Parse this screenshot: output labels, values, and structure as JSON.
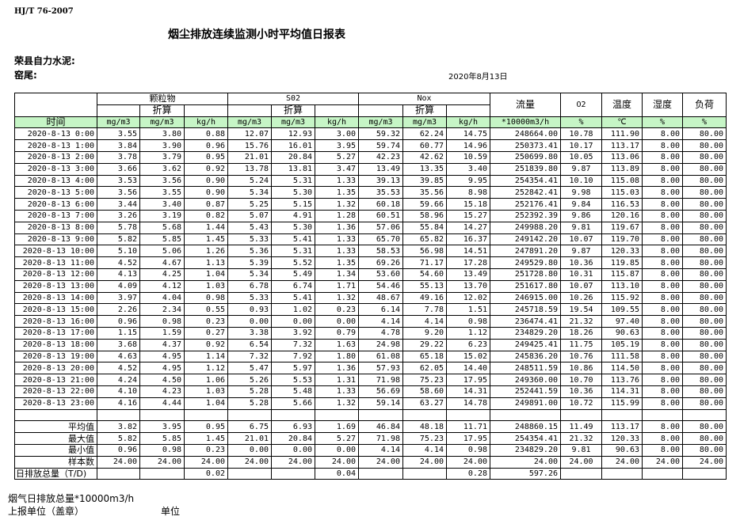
{
  "header": {
    "standard": "HJ/T  76-2007",
    "title": "烟尘排放连续监测小时平均值日报表",
    "company": "荣县自力水泥:",
    "kiln": "窑尾:",
    "date": "2020年8月13日"
  },
  "table": {
    "groups": {
      "pm": "颗粒物",
      "so2": "S02",
      "nox": "Nox",
      "flow": "流量",
      "o2": "O2",
      "temp": "温度",
      "humidity": "湿度",
      "load": "负荷"
    },
    "converted_label": "折算",
    "time_label": "时间",
    "units": [
      "mg/m3",
      "mg/m3",
      "kg/h",
      "mg/m3",
      "mg/m3",
      "kg/h",
      "mg/m3",
      "mg/m3",
      "kg/h",
      "*10000m3/h",
      "%",
      "℃",
      "%",
      "%"
    ],
    "rows": [
      [
        "2020-8-13 0:00",
        "3.55",
        "3.80",
        "0.88",
        "12.07",
        "12.93",
        "3.00",
        "59.32",
        "62.24",
        "14.75",
        "248664.00",
        "10.78",
        "111.90",
        "8.00",
        "80.00"
      ],
      [
        "2020-8-13 1:00",
        "3.84",
        "3.90",
        "0.96",
        "15.76",
        "16.01",
        "3.95",
        "59.74",
        "60.77",
        "14.96",
        "250373.41",
        "10.17",
        "113.17",
        "8.00",
        "80.00"
      ],
      [
        "2020-8-13 2:00",
        "3.78",
        "3.79",
        "0.95",
        "21.01",
        "20.84",
        "5.27",
        "42.23",
        "42.62",
        "10.59",
        "250699.80",
        "10.05",
        "113.06",
        "8.00",
        "80.00"
      ],
      [
        "2020-8-13 3:00",
        "3.66",
        "3.62",
        "0.92",
        "13.78",
        "13.81",
        "3.47",
        "13.49",
        "13.35",
        "3.40",
        "251839.80",
        "9.87",
        "113.89",
        "8.00",
        "80.00"
      ],
      [
        "2020-8-13 4:00",
        "3.53",
        "3.56",
        "0.90",
        "5.24",
        "5.31",
        "1.33",
        "39.13",
        "39.85",
        "9.95",
        "254354.41",
        "10.10",
        "115.08",
        "8.00",
        "80.00"
      ],
      [
        "2020-8-13 5:00",
        "3.56",
        "3.55",
        "0.90",
        "5.34",
        "5.30",
        "1.35",
        "35.53",
        "35.56",
        "8.98",
        "252842.41",
        "9.98",
        "115.03",
        "8.00",
        "80.00"
      ],
      [
        "2020-8-13 6:00",
        "3.44",
        "3.40",
        "0.87",
        "5.25",
        "5.15",
        "1.32",
        "60.18",
        "59.66",
        "15.18",
        "252176.41",
        "9.84",
        "116.53",
        "8.00",
        "80.00"
      ],
      [
        "2020-8-13 7:00",
        "3.26",
        "3.19",
        "0.82",
        "5.07",
        "4.91",
        "1.28",
        "60.51",
        "58.96",
        "15.27",
        "252392.39",
        "9.86",
        "120.16",
        "8.00",
        "80.00"
      ],
      [
        "2020-8-13 8:00",
        "5.78",
        "5.68",
        "1.44",
        "5.43",
        "5.30",
        "1.36",
        "57.06",
        "55.84",
        "14.27",
        "249988.20",
        "9.81",
        "119.67",
        "8.00",
        "80.00"
      ],
      [
        "2020-8-13 9:00",
        "5.82",
        "5.85",
        "1.45",
        "5.33",
        "5.41",
        "1.33",
        "65.70",
        "65.82",
        "16.37",
        "249142.20",
        "10.07",
        "119.70",
        "8.00",
        "80.00"
      ],
      [
        "2020-8-13 10:00",
        "5.10",
        "5.06",
        "1.26",
        "5.36",
        "5.31",
        "1.33",
        "58.53",
        "56.98",
        "14.51",
        "247891.20",
        "9.87",
        "120.33",
        "8.00",
        "80.00"
      ],
      [
        "2020-8-13 11:00",
        "4.52",
        "4.67",
        "1.13",
        "5.39",
        "5.52",
        "1.35",
        "69.26",
        "71.17",
        "17.28",
        "249529.80",
        "10.36",
        "119.85",
        "8.00",
        "80.00"
      ],
      [
        "2020-8-13 12:00",
        "4.13",
        "4.25",
        "1.04",
        "5.34",
        "5.49",
        "1.34",
        "53.60",
        "54.60",
        "13.49",
        "251728.80",
        "10.31",
        "115.87",
        "8.00",
        "80.00"
      ],
      [
        "2020-8-13 13:00",
        "4.09",
        "4.12",
        "1.03",
        "6.78",
        "6.74",
        "1.71",
        "54.46",
        "55.13",
        "13.70",
        "251617.80",
        "10.07",
        "113.10",
        "8.00",
        "80.00"
      ],
      [
        "2020-8-13 14:00",
        "3.97",
        "4.04",
        "0.98",
        "5.33",
        "5.41",
        "1.32",
        "48.67",
        "49.16",
        "12.02",
        "246915.00",
        "10.26",
        "115.92",
        "8.00",
        "80.00"
      ],
      [
        "2020-8-13 15:00",
        "2.26",
        "2.34",
        "0.55",
        "0.93",
        "1.02",
        "0.23",
        "6.14",
        "7.78",
        "1.51",
        "245718.59",
        "19.54",
        "109.55",
        "8.00",
        "80.00"
      ],
      [
        "2020-8-13 16:00",
        "0.96",
        "0.98",
        "0.23",
        "0.00",
        "0.00",
        "0.00",
        "4.14",
        "4.14",
        "0.98",
        "236474.41",
        "21.32",
        "97.40",
        "8.00",
        "80.00"
      ],
      [
        "2020-8-13 17:00",
        "1.15",
        "1.59",
        "0.27",
        "3.38",
        "3.92",
        "0.79",
        "4.78",
        "9.20",
        "1.12",
        "234829.20",
        "18.26",
        "90.63",
        "8.00",
        "80.00"
      ],
      [
        "2020-8-13 18:00",
        "3.68",
        "4.37",
        "0.92",
        "6.54",
        "7.32",
        "1.63",
        "24.98",
        "29.22",
        "6.23",
        "249425.41",
        "11.75",
        "105.19",
        "8.00",
        "80.00"
      ],
      [
        "2020-8-13 19:00",
        "4.63",
        "4.95",
        "1.14",
        "7.32",
        "7.92",
        "1.80",
        "61.08",
        "65.18",
        "15.02",
        "245836.20",
        "10.76",
        "111.58",
        "8.00",
        "80.00"
      ],
      [
        "2020-8-13 20:00",
        "4.52",
        "4.95",
        "1.12",
        "5.47",
        "5.97",
        "1.36",
        "57.93",
        "62.05",
        "14.40",
        "248511.59",
        "10.86",
        "114.50",
        "8.00",
        "80.00"
      ],
      [
        "2020-8-13 21:00",
        "4.24",
        "4.50",
        "1.06",
        "5.26",
        "5.53",
        "1.31",
        "71.98",
        "75.23",
        "17.95",
        "249360.00",
        "10.70",
        "113.76",
        "8.00",
        "80.00"
      ],
      [
        "2020-8-13 22:00",
        "4.10",
        "4.23",
        "1.03",
        "5.28",
        "5.48",
        "1.33",
        "56.69",
        "58.60",
        "14.31",
        "252441.59",
        "10.36",
        "114.31",
        "8.00",
        "80.00"
      ],
      [
        "2020-8-13 23:00",
        "4.16",
        "4.44",
        "1.04",
        "5.28",
        "5.66",
        "1.32",
        "59.14",
        "63.27",
        "14.78",
        "249891.00",
        "10.72",
        "115.99",
        "8.00",
        "80.00"
      ]
    ],
    "stats": [
      [
        "平均值",
        "3.82",
        "3.95",
        "0.95",
        "6.75",
        "6.93",
        "1.69",
        "46.84",
        "48.18",
        "11.71",
        "248860.15",
        "11.49",
        "113.17",
        "8.00",
        "80.00"
      ],
      [
        "最大值",
        "5.82",
        "5.85",
        "1.45",
        "21.01",
        "20.84",
        "5.27",
        "71.98",
        "75.23",
        "17.95",
        "254354.41",
        "21.32",
        "120.33",
        "8.00",
        "80.00"
      ],
      [
        "最小值",
        "0.96",
        "0.98",
        "0.23",
        "0.00",
        "0.00",
        "0.00",
        "4.14",
        "4.14",
        "0.98",
        "234829.20",
        "9.81",
        "90.63",
        "8.00",
        "80.00"
      ],
      [
        "样本数",
        "24.00",
        "24.00",
        "24.00",
        "24.00",
        "24.00",
        "24.00",
        "24.00",
        "24.00",
        "24.00",
        "24.00",
        "24.00",
        "24.00",
        "24.00",
        "24.00"
      ]
    ],
    "daily_total": [
      "日排放总量（T/D)",
      "",
      "",
      "0.02",
      "",
      "",
      "0.04",
      "",
      "",
      "0.28",
      "597.26",
      "",
      "",
      "",
      ""
    ]
  },
  "footer": {
    "flue_gas_total": "烟气日排放总量*10000m3/h",
    "reporting_unit": "上报单位（盖章）",
    "unit": "单位"
  }
}
